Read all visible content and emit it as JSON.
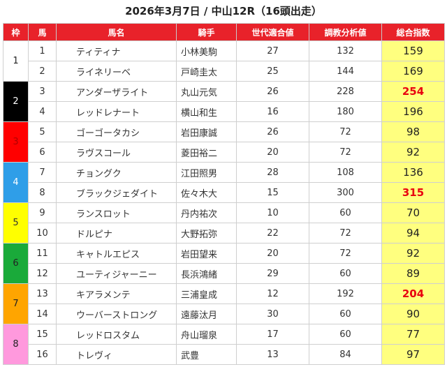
{
  "title": "2026年3月7日 / 中山12R（16頭出走）",
  "headers": [
    "枠",
    "馬",
    "馬名",
    "騎手",
    "世代適合値",
    "調教分析値",
    "総合指数"
  ],
  "waku": [
    {
      "label": "1",
      "color": "#ffffff",
      "text": "#222222"
    },
    {
      "label": "2",
      "color": "#000000",
      "text": "#ffffff"
    },
    {
      "label": "3",
      "color": "#ff0000",
      "text": "#b00000"
    },
    {
      "label": "4",
      "color": "#2f9ee8",
      "text": "#ffffff"
    },
    {
      "label": "5",
      "color": "#ffff00",
      "text": "#333333"
    },
    {
      "label": "6",
      "color": "#1aaa3a",
      "text": "#222222"
    },
    {
      "label": "7",
      "color": "#ffa500",
      "text": "#222222"
    },
    {
      "label": "8",
      "color": "#ff99dd",
      "text": "#222222"
    }
  ],
  "rows": [
    {
      "num": "1",
      "name": "ティティナ",
      "jockey": "小林美駒",
      "gen": "27",
      "train": "132",
      "total": "159",
      "hi": false
    },
    {
      "num": "2",
      "name": "ライネリーベ",
      "jockey": "戸崎圭太",
      "gen": "25",
      "train": "144",
      "total": "169",
      "hi": false
    },
    {
      "num": "3",
      "name": "アンダーザライト",
      "jockey": "丸山元気",
      "gen": "26",
      "train": "228",
      "total": "254",
      "hi": true
    },
    {
      "num": "4",
      "name": "レッドレナート",
      "jockey": "横山和生",
      "gen": "16",
      "train": "180",
      "total": "196",
      "hi": false
    },
    {
      "num": "5",
      "name": "ゴーゴータカシ",
      "jockey": "岩田康誠",
      "gen": "26",
      "train": "72",
      "total": "98",
      "hi": false
    },
    {
      "num": "6",
      "name": "ラヴスコール",
      "jockey": "菱田裕二",
      "gen": "20",
      "train": "72",
      "total": "92",
      "hi": false
    },
    {
      "num": "7",
      "name": "チョングク",
      "jockey": "江田照男",
      "gen": "28",
      "train": "108",
      "total": "136",
      "hi": false
    },
    {
      "num": "8",
      "name": "ブラックジェダイト",
      "jockey": "佐々木大",
      "gen": "15",
      "train": "300",
      "total": "315",
      "hi": true
    },
    {
      "num": "9",
      "name": "ランスロット",
      "jockey": "丹内祐次",
      "gen": "10",
      "train": "60",
      "total": "70",
      "hi": false
    },
    {
      "num": "10",
      "name": "ドルピナ",
      "jockey": "大野拓弥",
      "gen": "22",
      "train": "72",
      "total": "94",
      "hi": false
    },
    {
      "num": "11",
      "name": "キャトルエピス",
      "jockey": "岩田望来",
      "gen": "20",
      "train": "72",
      "total": "92",
      "hi": false
    },
    {
      "num": "12",
      "name": "ユーティジャーニー",
      "jockey": "長浜鴻緒",
      "gen": "29",
      "train": "60",
      "total": "89",
      "hi": false
    },
    {
      "num": "13",
      "name": "キアラメンテ",
      "jockey": "三浦皇成",
      "gen": "12",
      "train": "192",
      "total": "204",
      "hi": true
    },
    {
      "num": "14",
      "name": "ウーバーストロング",
      "jockey": "遠藤汰月",
      "gen": "30",
      "train": "60",
      "total": "90",
      "hi": false
    },
    {
      "num": "15",
      "name": "レッドロスタム",
      "jockey": "舟山瑠泉",
      "gen": "17",
      "train": "60",
      "total": "77",
      "hi": false
    },
    {
      "num": "16",
      "name": "トレヴィ",
      "jockey": "武豊",
      "gen": "13",
      "train": "84",
      "total": "97",
      "hi": false
    }
  ]
}
